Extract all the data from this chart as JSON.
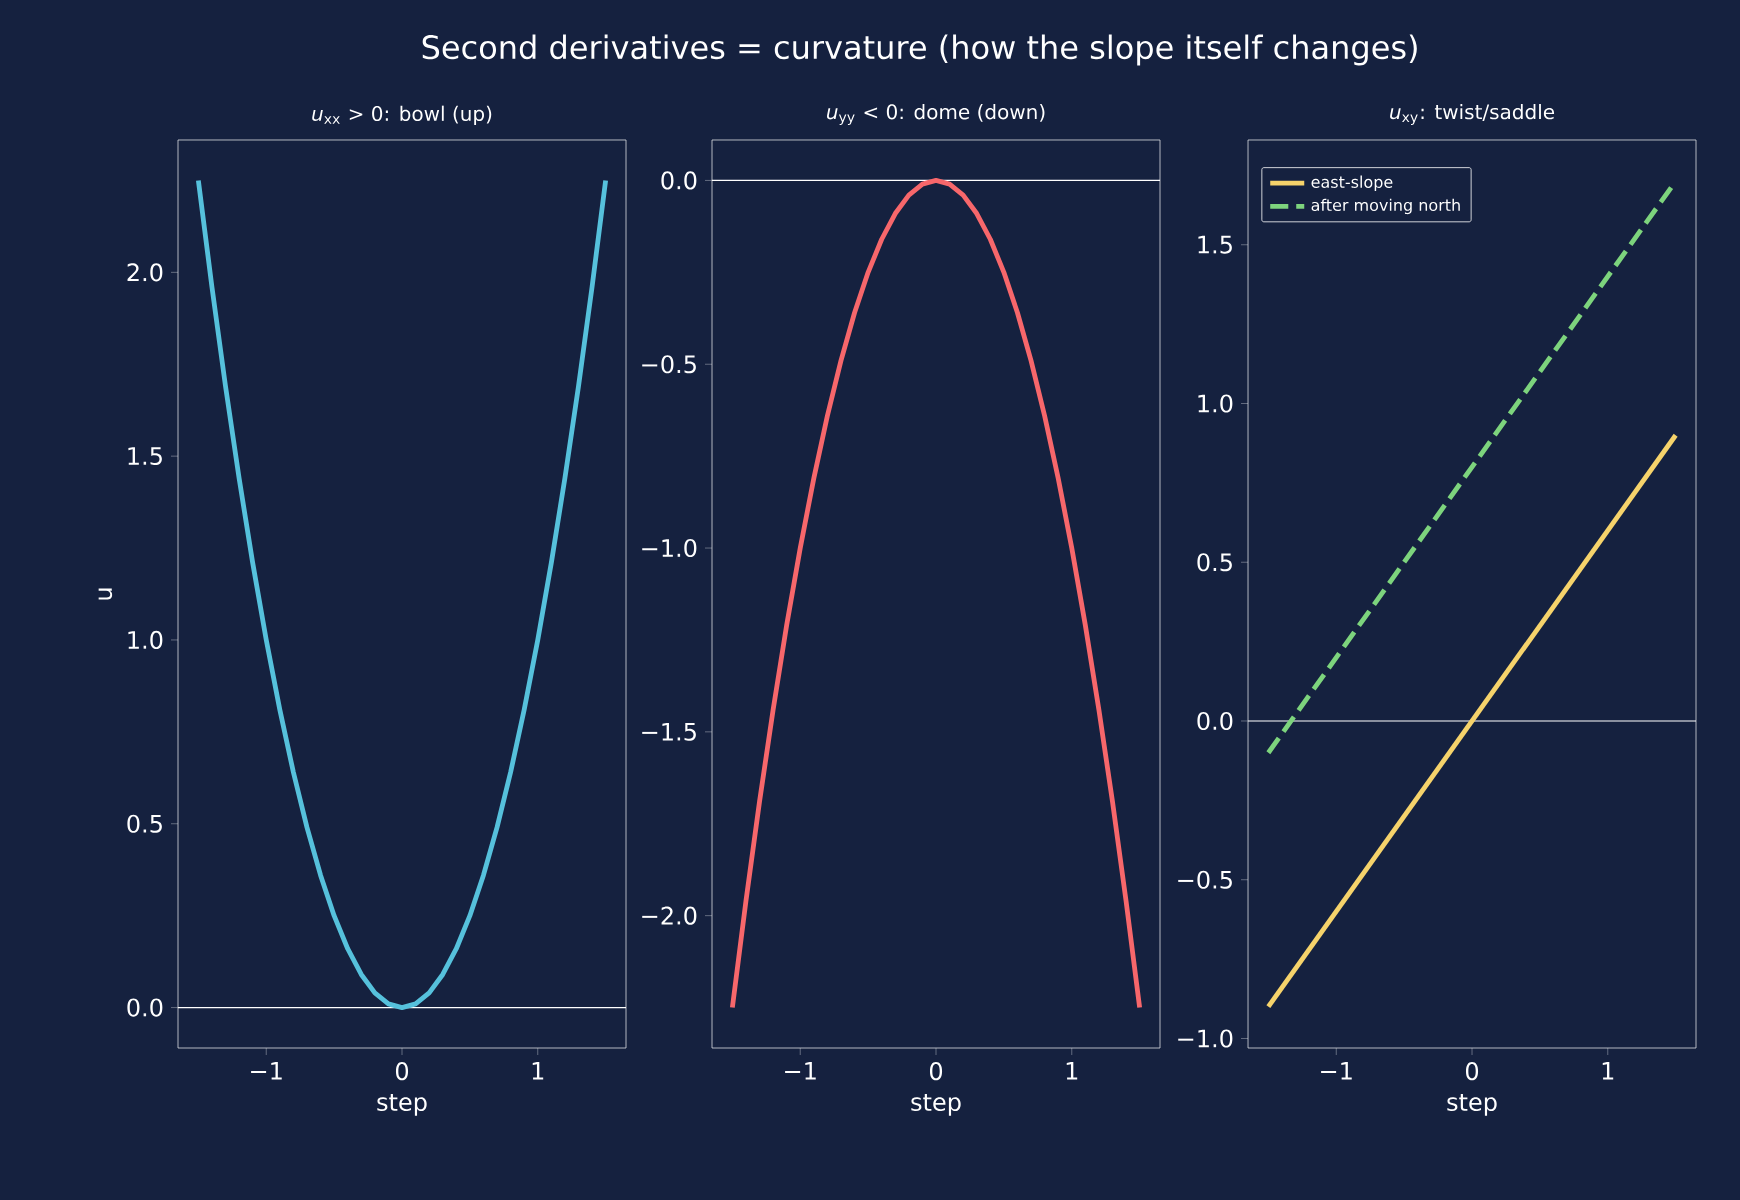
{
  "chart_data": [
    {
      "type": "line",
      "title": "*u*$_{xx}$ > 0: bowl (up)",
      "xlabel": "step",
      "ylabel": "u",
      "annotations": [
        "Second derivatives = curvature (how the slope itself changes)"
      ],
      "x": [
        -1.5,
        -1.4,
        -1.3,
        -1.2,
        -1.1,
        -1.0,
        -0.9,
        -0.8,
        -0.7,
        -0.6,
        -0.5,
        -0.4,
        -0.3,
        -0.2,
        -0.1,
        0,
        0.1,
        0.2,
        0.3,
        0.4,
        0.5,
        0.6,
        0.7,
        0.8,
        0.9,
        1.0,
        1.1,
        1.2,
        1.3,
        1.4,
        1.5
      ],
      "series": [
        {
          "color": "#56c1dc",
          "values": [
            2.25,
            1.96,
            1.69,
            1.44,
            1.21,
            1.0,
            0.81,
            0.64,
            0.49,
            0.36,
            0.25,
            0.16,
            0.09,
            0.04,
            0.01,
            0,
            0.01,
            0.04,
            0.09,
            0.16,
            0.25,
            0.36,
            0.49,
            0.64,
            0.81,
            1.0,
            1.21,
            1.44,
            1.69,
            1.96,
            2.25
          ]
        }
      ],
      "xlim": [
        -1.65,
        1.65
      ],
      "ylim": [
        -0.11,
        2.36
      ],
      "xticks": [
        {
          "value": -1,
          "label": "−1"
        },
        {
          "value": 0,
          "label": "0"
        },
        {
          "value": 1,
          "label": "1"
        }
      ],
      "yticks": [
        {
          "value": 0,
          "label": "0.0"
        },
        {
          "value": 0.5,
          "label": "0.5"
        },
        {
          "value": 1,
          "label": "1.0"
        },
        {
          "value": 1.5,
          "label": "1.5"
        },
        {
          "value": 2,
          "label": "2.0"
        }
      ],
      "ref_lines": [
        {
          "axis": "y",
          "value": 0,
          "color": "#ffffff"
        }
      ]
    },
    {
      "type": "line",
      "title": "*u*$_{yy}$ < 0: dome (down)",
      "xlabel": "step",
      "x": [
        -1.5,
        -1.4,
        -1.3,
        -1.2,
        -1.1,
        -1.0,
        -0.9,
        -0.8,
        -0.7,
        -0.6,
        -0.5,
        -0.4,
        -0.3,
        -0.2,
        -0.1,
        0,
        0.1,
        0.2,
        0.3,
        0.4,
        0.5,
        0.6,
        0.7,
        0.8,
        0.9,
        1.0,
        1.1,
        1.2,
        1.3,
        1.4,
        1.5
      ],
      "series": [
        {
          "color": "#f7676b",
          "values": [
            -2.25,
            -1.96,
            -1.69,
            -1.44,
            -1.21,
            -1.0,
            -0.81,
            -0.64,
            -0.49,
            -0.36,
            -0.25,
            -0.16,
            -0.09,
            -0.04,
            -0.01,
            0,
            -0.01,
            -0.04,
            -0.09,
            -0.16,
            -0.25,
            -0.36,
            -0.49,
            -0.64,
            -0.81,
            -1.0,
            -1.21,
            -1.44,
            -1.69,
            -1.96,
            -2.25
          ]
        }
      ],
      "xlim": [
        -1.65,
        1.65
      ],
      "ylim": [
        -2.36,
        0.11
      ],
      "xticks": [
        {
          "value": -1,
          "label": "−1"
        },
        {
          "value": 0,
          "label": "0"
        },
        {
          "value": 1,
          "label": "1"
        }
      ],
      "yticks": [
        {
          "value": -2,
          "label": "−2.0"
        },
        {
          "value": -1.5,
          "label": "−1.5"
        },
        {
          "value": -1,
          "label": "−1.0"
        },
        {
          "value": -0.5,
          "label": "−0.5"
        },
        {
          "value": 0,
          "label": "0.0"
        }
      ],
      "ref_lines": [
        {
          "axis": "y",
          "value": 0,
          "color": "#ffffff"
        }
      ]
    },
    {
      "type": "line",
      "title": "*u*$_{xy}$: twist/saddle",
      "xlabel": "step",
      "legend": "top left",
      "x": [
        -1.5,
        1.5
      ],
      "series": [
        {
          "name": "east-slope",
          "color": "#f6d36b",
          "values": [
            -0.9,
            0.9
          ]
        },
        {
          "name": "after moving north",
          "color": "#7dd47d",
          "line_style": "dashed",
          "values": [
            -0.1,
            1.7
          ]
        }
      ],
      "xlim": [
        -1.65,
        1.65
      ],
      "ylim": [
        -1.03,
        1.83
      ],
      "xticks": [
        {
          "value": -1,
          "label": "−1"
        },
        {
          "value": 0,
          "label": "0"
        },
        {
          "value": 1,
          "label": "1"
        }
      ],
      "yticks": [
        {
          "value": -1,
          "label": "−1.0"
        },
        {
          "value": -0.5,
          "label": "−0.5"
        },
        {
          "value": 0,
          "label": "0.0"
        },
        {
          "value": 0.5,
          "label": "0.5"
        },
        {
          "value": 1,
          "label": "1.0"
        },
        {
          "value": 1.5,
          "label": "1.5"
        }
      ],
      "ref_lines": [
        {
          "axis": "y",
          "value": 0,
          "color": "#ffffff"
        }
      ]
    }
  ]
}
